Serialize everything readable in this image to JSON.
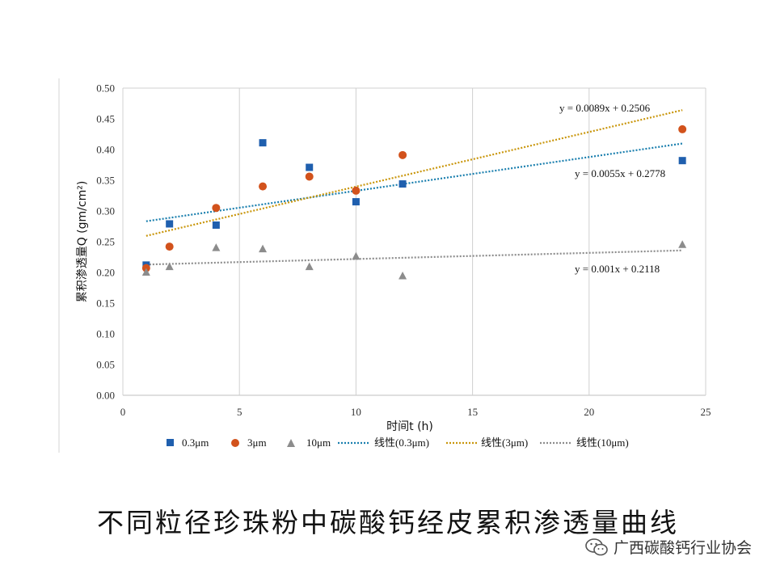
{
  "chart_data": {
    "type": "scatter",
    "xlabel": "时间t  (h)",
    "ylabel": "累积渗透量Q  (gm/cm²)",
    "xlim": [
      0,
      25
    ],
    "ylim": [
      0,
      0.5
    ],
    "xticks": [
      "0",
      "5",
      "10",
      "15",
      "20",
      "25"
    ],
    "yticks": [
      "0.00",
      "0.05",
      "0.10",
      "0.15",
      "0.20",
      "0.25",
      "0.30",
      "0.35",
      "0.40",
      "0.45",
      "0.50"
    ],
    "grid": "vertical",
    "series": [
      {
        "name": "0.3μm",
        "marker": "square",
        "color": "#1f5fae",
        "x": [
          1,
          2,
          4,
          6,
          8,
          10,
          12,
          24
        ],
        "y": [
          0.212,
          0.279,
          0.277,
          0.411,
          0.371,
          0.315,
          0.344,
          0.382
        ]
      },
      {
        "name": "3μm",
        "marker": "circle",
        "color": "#d2521c",
        "x": [
          1,
          2,
          4,
          6,
          8,
          10,
          12,
          24
        ],
        "y": [
          0.207,
          0.242,
          0.305,
          0.34,
          0.356,
          0.333,
          0.391,
          0.433
        ]
      },
      {
        "name": "10μm",
        "marker": "triangle",
        "color": "#8c8c8c",
        "x": [
          1,
          2,
          4,
          6,
          8,
          10,
          12,
          24
        ],
        "y": [
          0.2,
          0.209,
          0.24,
          0.238,
          0.209,
          0.226,
          0.194,
          0.245
        ]
      }
    ],
    "trendlines": [
      {
        "name": "线性(0.3μm)",
        "color": "#1a7fae",
        "slope": 0.0055,
        "intercept": 0.2778,
        "x_range": [
          1,
          24
        ],
        "equation": "y = 0.0055x + 0.2778"
      },
      {
        "name": "线性(3μm)",
        "color": "#c9960c",
        "slope": 0.0089,
        "intercept": 0.2506,
        "x_range": [
          1,
          24
        ],
        "equation": "y = 0.0089x + 0.2506"
      },
      {
        "name": "线性(10μm)",
        "color": "#8c8c8c",
        "slope": 0.001,
        "intercept": 0.2118,
        "x_range": [
          1,
          24
        ],
        "equation": "y = 0.001x + 0.2118"
      }
    ],
    "legend": {
      "position": "bottom",
      "items": [
        "0.3μm",
        "3μm",
        "10μm",
        "线性(0.3μm)",
        "线性(3μm)",
        "线性(10μm)"
      ]
    }
  },
  "caption": "不同粒径珍珠粉中碳酸钙经皮累积渗透量曲线",
  "watermark": {
    "icon": "wechat-icon",
    "text": "广西碳酸钙行业协会"
  }
}
